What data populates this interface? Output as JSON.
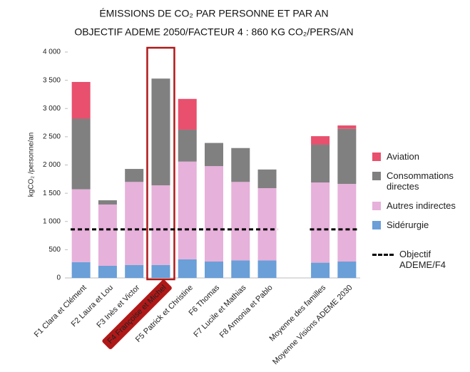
{
  "chart_data": {
    "type": "stacked_bar",
    "title": [
      "ÉMISSIONS DE CO₂ PAR PERSONNE ET PAR AN",
      "OBJECTIF ADEME 2050/FACTEUR 4 : 860 KG CO₂/PERS/AN"
    ],
    "y_label": "kgCO₂ /personne/an",
    "categories": [
      "F1 Clara et Clément",
      "F2 Laura et Lou",
      "F3 Inès et Victor",
      "F4 Françoise et Michel",
      "F5 Patrick et Christine",
      "F6 Thomas",
      "F7 Lucile et Mathias",
      "F8 Armonia et Pablo",
      null,
      "Moyenne des familles",
      "Moyenne Visions ADEME 2030"
    ],
    "series": [
      {
        "name": "Sidérurgie",
        "color": "#6a9fd8",
        "values": [
          280,
          215,
          230,
          230,
          330,
          290,
          310,
          310,
          null,
          270,
          290
        ]
      },
      {
        "name": "Autres indirectes",
        "color": "#e6b1da",
        "values": [
          1290,
          1085,
          1470,
          1410,
          1730,
          1690,
          1390,
          1280,
          null,
          1420,
          1375
        ]
      },
      {
        "name": "Consommations directes",
        "color": "#808080",
        "values": [
          1250,
          75,
          230,
          1890,
          565,
          410,
          600,
          330,
          null,
          670,
          975
        ]
      },
      {
        "name": "Aviation",
        "color": "#e8506e",
        "values": [
          650,
          0,
          0,
          0,
          545,
          0,
          0,
          0,
          null,
          150,
          60
        ]
      }
    ],
    "target": {
      "name": "Objectif ADEME/F4",
      "value": 860,
      "color": "#000000"
    },
    "highlight_index": 3,
    "highlight_color": "#b01818",
    "ylim": [
      0,
      4000
    ],
    "yticks": [
      0,
      500,
      {
        "value": 1000,
        "label": "1 000"
      },
      {
        "value": 1500,
        "label": "1 500"
      },
      {
        "value": 2000,
        "label": "2 000"
      },
      {
        "value": 2500,
        "label": "2 500"
      },
      {
        "value": 3000,
        "label": "3 000"
      },
      {
        "value": 3500,
        "label": "3 500"
      },
      {
        "value": 4000,
        "label": "4 000"
      }
    ],
    "legend": "right"
  }
}
